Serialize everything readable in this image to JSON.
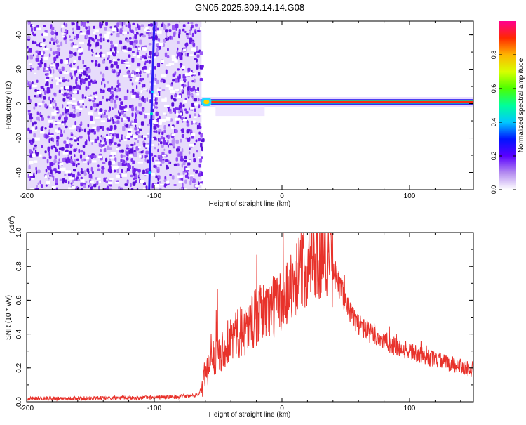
{
  "title": "GN05.2025.309.14.14.G08",
  "chart_data": [
    {
      "type": "heatmap",
      "xlabel": "Height of straight line (km)",
      "ylabel": "Frequency (Hz)",
      "xlim": [
        -200,
        150
      ],
      "ylim": [
        -50,
        48
      ],
      "xticks": [
        "-200",
        "-100",
        "0",
        "100"
      ],
      "yticks": [
        "40",
        "20",
        "0",
        "-20",
        "-40"
      ],
      "colorbar": {
        "label": "Normalized spectral amplitude",
        "range": [
          0,
          1
        ],
        "ticks": [
          "0.0",
          "0.2",
          "0.4",
          "0.6",
          "0.8"
        ]
      },
      "features": {
        "noise_region_x": [
          -200,
          -63
        ],
        "diagonal_line": {
          "x_at_top": -100,
          "x_at_bottom": -104
        },
        "signal_band": {
          "x_start": -63,
          "x_end": 150,
          "frequency": 1
        }
      },
      "grid": false
    },
    {
      "type": "line",
      "xlabel": "Height of straight line (km)",
      "ylabel": "SNR (10 * v/v)",
      "multiplier": "(x10^4)",
      "multiplier_base": "(x10",
      "multiplier_exp": "4",
      "multiplier_close": ")",
      "xlim": [
        -200,
        150
      ],
      "ylim": [
        0,
        1.0
      ],
      "xticks": [
        "-200",
        "-100",
        "0",
        "100"
      ],
      "yticks": [
        "0.0",
        "0.2",
        "0.4",
        "0.6",
        "0.8",
        "1.0"
      ],
      "series": [
        {
          "color": "#e8322b",
          "x": [
            -200,
            -150,
            -100,
            -80,
            -66,
            -63,
            -58,
            -54,
            -52,
            -51,
            -50,
            -48,
            -44,
            -40,
            -30,
            -20,
            -10,
            0,
            10,
            20,
            25,
            30,
            33,
            36,
            40,
            45,
            50,
            55,
            60,
            70,
            80,
            90,
            100,
            110,
            120,
            130,
            140,
            150
          ],
          "values": [
            0.02,
            0.02,
            0.025,
            0.03,
            0.04,
            0.08,
            0.18,
            0.26,
            0.28,
            0.6,
            0.3,
            0.3,
            0.33,
            0.38,
            0.42,
            0.5,
            0.55,
            0.6,
            0.72,
            0.82,
            0.86,
            0.88,
            0.92,
            0.88,
            0.8,
            0.68,
            0.6,
            0.5,
            0.46,
            0.4,
            0.36,
            0.32,
            0.3,
            0.27,
            0.25,
            0.23,
            0.21,
            0.19
          ]
        }
      ],
      "grid": false
    }
  ]
}
